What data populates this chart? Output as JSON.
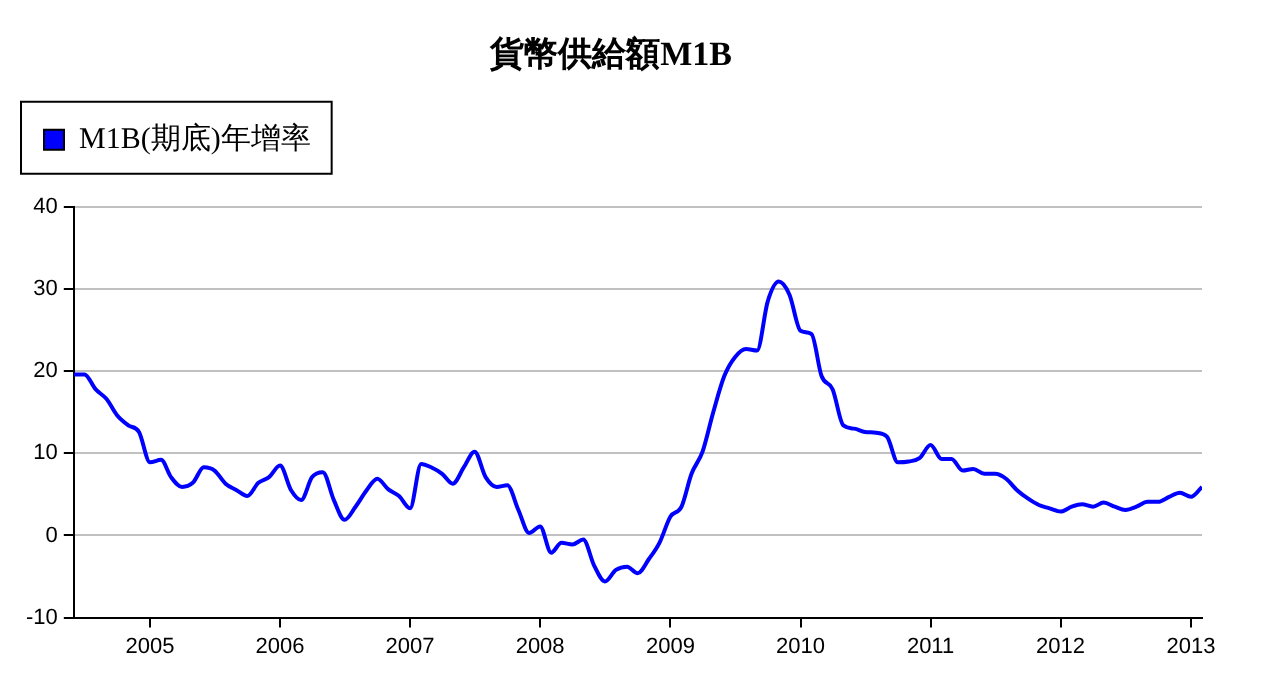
{
  "chart_data": {
    "type": "line",
    "title": "貨幣供給額M1B",
    "legend": "top left",
    "grid": "y",
    "marker": "none",
    "line_style": "solid",
    "x": [
      "2004-06",
      "2004-07",
      "2004-08",
      "2004-09",
      "2004-10",
      "2004-11",
      "2004-12",
      "2005-01",
      "2005-02",
      "2005-03",
      "2005-04",
      "2005-05",
      "2005-06",
      "2005-07",
      "2005-08",
      "2005-09",
      "2005-10",
      "2005-11",
      "2005-12",
      "2006-01",
      "2006-02",
      "2006-03",
      "2006-04",
      "2006-05",
      "2006-06",
      "2006-07",
      "2006-08",
      "2006-09",
      "2006-10",
      "2006-11",
      "2006-12",
      "2007-01",
      "2007-02",
      "2007-03",
      "2007-04",
      "2007-05",
      "2007-06",
      "2007-07",
      "2007-08",
      "2007-09",
      "2007-10",
      "2007-11",
      "2007-12",
      "2008-01",
      "2008-02",
      "2008-03",
      "2008-04",
      "2008-05",
      "2008-06",
      "2008-07",
      "2008-08",
      "2008-09",
      "2008-10",
      "2008-11",
      "2008-12",
      "2009-01",
      "2009-02",
      "2009-03",
      "2009-04",
      "2009-05",
      "2009-06",
      "2009-07",
      "2009-08",
      "2009-09",
      "2009-10",
      "2009-11",
      "2009-12",
      "2010-01",
      "2010-02",
      "2010-03",
      "2010-04",
      "2010-05",
      "2010-06",
      "2010-07",
      "2010-08",
      "2010-09",
      "2010-10",
      "2010-11",
      "2010-12",
      "2011-01",
      "2011-02",
      "2011-03",
      "2011-04",
      "2011-05",
      "2011-06",
      "2011-07",
      "2011-08",
      "2011-09",
      "2011-10",
      "2011-11",
      "2011-12",
      "2012-01",
      "2012-02",
      "2012-03",
      "2012-04",
      "2012-05",
      "2012-06",
      "2012-07",
      "2012-08",
      "2012-09",
      "2012-10",
      "2012-11",
      "2012-12",
      "2013-01",
      "2013-02"
    ],
    "series": [
      {
        "name": "M1B(期底)年增率",
        "color": "#0000ff",
        "values": [
          19.6,
          19.6,
          17.8,
          16.6,
          14.6,
          13.4,
          12.6,
          8.9,
          9.2,
          7.1,
          5.9,
          6.4,
          8.3,
          7.9,
          6.3,
          5.5,
          4.8,
          6.4,
          7.1,
          8.5,
          5.5,
          4.3,
          7.1,
          7.7,
          4.3,
          1.9,
          3.5,
          5.5,
          6.9,
          5.6,
          4.8,
          3.3,
          8.7,
          8.3,
          7.5,
          6.3,
          8.3,
          10.2,
          7.1,
          5.9,
          6.1,
          3.1,
          0.3,
          1.1,
          -2.1,
          -0.9,
          -1.1,
          -0.5,
          -3.7,
          -5.6,
          -4.2,
          -3.8,
          -4.6,
          -2.9,
          -0.9,
          2.3,
          3.5,
          7.5,
          10.2,
          15.0,
          19.4,
          21.7,
          22.7,
          22.5,
          28.5,
          30.9,
          29.3,
          24.9,
          24.5,
          19.4,
          17.8,
          13.4,
          13.0,
          12.6,
          12.5,
          12.0,
          8.9,
          9.0,
          9.4,
          11.0,
          9.3,
          9.3,
          7.9,
          8.1,
          7.5,
          7.5,
          6.9,
          5.5,
          4.5,
          3.7,
          3.3,
          2.9,
          3.5,
          3.8,
          3.5,
          4.0,
          3.5,
          3.1,
          3.5,
          4.1,
          4.1,
          4.7,
          5.2,
          4.7,
          5.9
        ]
      }
    ],
    "xlim": [
      "2004-06",
      "2013-02"
    ],
    "xticks": [
      "2005",
      "2006",
      "2007",
      "2008",
      "2009",
      "2010",
      "2011",
      "2012",
      "2013"
    ],
    "ylim": [
      -10,
      40
    ],
    "yticks": [
      -10,
      0,
      10,
      20,
      30,
      40
    ]
  }
}
